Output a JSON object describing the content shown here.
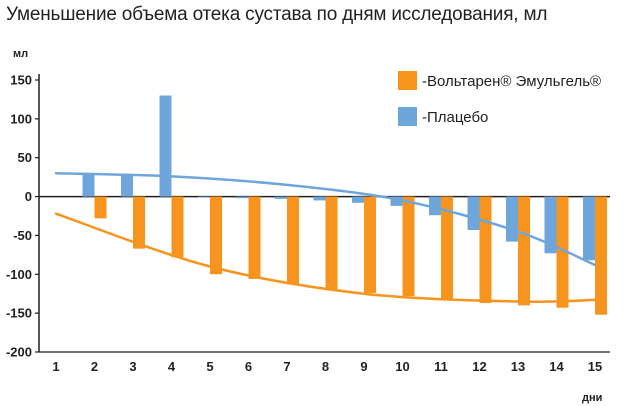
{
  "chart_data": {
    "type": "bar",
    "title": "Уменьшение объема отека сустава по дням исследования, мл",
    "ylabel": "мл",
    "xlabel": "дни",
    "categories": [
      "1",
      "2",
      "3",
      "4",
      "5",
      "6",
      "7",
      "8",
      "9",
      "10",
      "11",
      "12",
      "13",
      "14",
      "15"
    ],
    "yticks": [
      "150",
      "100",
      "50",
      "0",
      "-50",
      "-100",
      "-150",
      "-200"
    ],
    "ylim": [
      -200,
      150
    ],
    "series": [
      {
        "name": "-Вольтарен® Эмульгель®",
        "color": "#f7941d",
        "values": [
          null,
          -28,
          -67,
          -78,
          -100,
          -106,
          -113,
          -120,
          -124,
          -128,
          -133,
          -137,
          -140,
          -143,
          -152
        ]
      },
      {
        "name": "-Плацебо",
        "color": "#6ea6dc",
        "values": [
          null,
          30,
          28,
          130,
          0,
          -2,
          -3,
          -5,
          -8,
          -12,
          -24,
          -43,
          -58,
          -73,
          -82
        ]
      }
    ],
    "trendlines": [
      {
        "series": "-Вольтарен® Эмульгель®",
        "color": "#f7941d",
        "points": [
          [
            1,
            -22
          ],
          [
            5,
            -90
          ],
          [
            9,
            -125
          ],
          [
            13,
            -135
          ],
          [
            15,
            -133
          ]
        ]
      },
      {
        "series": "-Плацебо",
        "color": "#6ea6dc",
        "points": [
          [
            1,
            30
          ],
          [
            4,
            26
          ],
          [
            7,
            15
          ],
          [
            10,
            -5
          ],
          [
            13,
            -45
          ],
          [
            15,
            -88
          ]
        ]
      }
    ],
    "legend_position": "top-right",
    "grid": false
  }
}
